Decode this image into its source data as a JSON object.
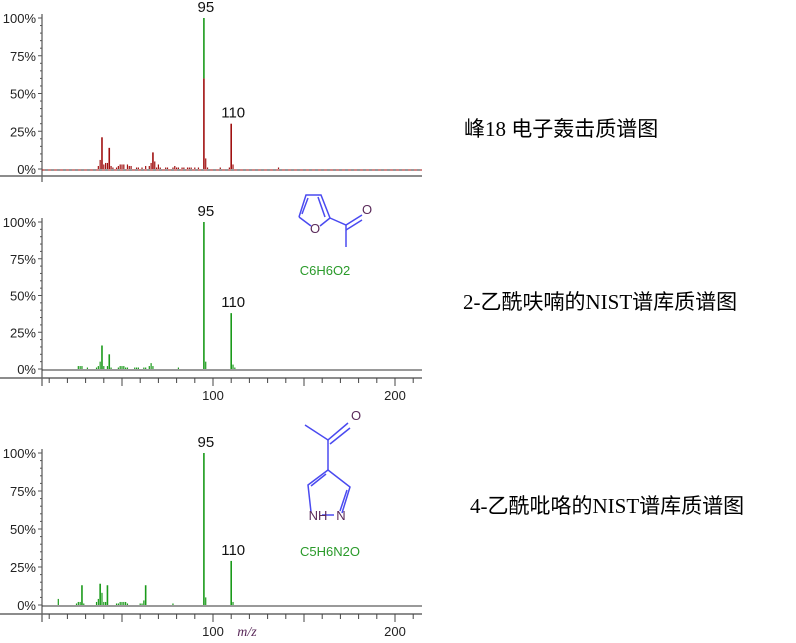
{
  "chart_data": [
    {
      "type": "bar",
      "caption": "峰18 电子轰击质谱图",
      "yticks": [
        "100%",
        "75%",
        "50%",
        "25%",
        "0%"
      ],
      "xticks": [],
      "ylim": [
        0,
        100
      ],
      "xlim": [
        6,
        209
      ],
      "color": "#a01010",
      "overlay_color": "#1a9a1a",
      "peak_labels": [
        {
          "x": 95,
          "text": "95"
        },
        {
          "x": 110,
          "text": "110"
        }
      ],
      "peaks": [
        [
          37,
          2
        ],
        [
          38,
          6
        ],
        [
          39,
          21
        ],
        [
          40,
          3
        ],
        [
          41,
          4
        ],
        [
          42,
          4
        ],
        [
          43,
          14
        ],
        [
          44,
          2
        ],
        [
          45,
          1
        ],
        [
          47,
          1
        ],
        [
          48,
          2
        ],
        [
          49,
          3
        ],
        [
          50,
          3
        ],
        [
          51,
          3
        ],
        [
          53,
          3
        ],
        [
          54,
          2
        ],
        [
          55,
          2
        ],
        [
          58,
          1
        ],
        [
          59,
          1
        ],
        [
          61,
          1
        ],
        [
          63,
          2
        ],
        [
          65,
          2
        ],
        [
          66,
          4
        ],
        [
          67,
          11
        ],
        [
          68,
          5
        ],
        [
          69,
          1
        ],
        [
          70,
          3
        ],
        [
          71,
          1
        ],
        [
          74,
          1
        ],
        [
          75,
          1
        ],
        [
          78,
          1
        ],
        [
          79,
          2
        ],
        [
          80,
          1
        ],
        [
          81,
          1
        ],
        [
          83,
          1
        ],
        [
          84,
          1
        ],
        [
          86,
          1
        ],
        [
          87,
          1
        ],
        [
          88,
          1
        ],
        [
          90,
          1
        ],
        [
          92,
          1
        ],
        [
          95,
          100
        ],
        [
          96,
          7
        ],
        [
          97,
          1
        ],
        [
          104,
          1
        ],
        [
          109,
          1
        ],
        [
          110,
          30
        ],
        [
          111,
          3
        ],
        [
          136,
          1
        ]
      ]
    },
    {
      "type": "bar",
      "caption": "2-乙酰呋喃的NIST谱库质谱图",
      "formula": "C6H6O2",
      "atoms": [
        "O",
        "O"
      ],
      "yticks": [
        "100%",
        "75%",
        "50%",
        "25%",
        "0%"
      ],
      "xticks": [
        "100",
        "200"
      ],
      "ylim": [
        0,
        100
      ],
      "xlim": [
        6,
        209
      ],
      "color": "#1a9a1a",
      "peak_labels": [
        {
          "x": 95,
          "text": "95"
        },
        {
          "x": 110,
          "text": "110"
        }
      ],
      "peaks": [
        [
          26,
          2
        ],
        [
          27,
          2
        ],
        [
          28,
          2
        ],
        [
          31,
          1
        ],
        [
          36,
          1
        ],
        [
          37,
          2
        ],
        [
          38,
          5
        ],
        [
          39,
          16
        ],
        [
          40,
          2
        ],
        [
          42,
          2
        ],
        [
          43,
          10
        ],
        [
          44,
          1
        ],
        [
          48,
          1
        ],
        [
          49,
          2
        ],
        [
          50,
          2
        ],
        [
          51,
          2
        ],
        [
          52,
          1
        ],
        [
          53,
          1
        ],
        [
          57,
          1
        ],
        [
          58,
          1
        ],
        [
          59,
          1
        ],
        [
          62,
          1
        ],
        [
          63,
          1
        ],
        [
          65,
          2
        ],
        [
          66,
          4
        ],
        [
          67,
          2
        ],
        [
          81,
          1
        ],
        [
          95,
          100
        ],
        [
          96,
          5
        ],
        [
          110,
          38
        ],
        [
          111,
          3
        ],
        [
          112,
          1
        ]
      ]
    },
    {
      "type": "bar",
      "caption": "4-乙酰吡咯的NIST谱库质谱图",
      "formula": "C5H6N2O",
      "atoms": [
        "O",
        "NH",
        "N"
      ],
      "xlabel": "m/z",
      "yticks": [
        "100%",
        "75%",
        "50%",
        "25%",
        "0%"
      ],
      "xticks": [
        "100",
        "200"
      ],
      "ylim": [
        0,
        100
      ],
      "xlim": [
        6,
        209
      ],
      "color": "#1a9a1a",
      "peak_labels": [
        {
          "x": 95,
          "text": "95"
        },
        {
          "x": 110,
          "text": "110"
        }
      ],
      "peaks": [
        [
          15,
          4
        ],
        [
          25,
          1
        ],
        [
          26,
          2
        ],
        [
          27,
          2
        ],
        [
          28,
          13
        ],
        [
          29,
          1
        ],
        [
          36,
          2
        ],
        [
          37,
          4
        ],
        [
          38,
          14
        ],
        [
          39,
          8
        ],
        [
          40,
          2
        ],
        [
          41,
          2
        ],
        [
          42,
          13
        ],
        [
          47,
          1
        ],
        [
          48,
          1
        ],
        [
          49,
          2
        ],
        [
          50,
          2
        ],
        [
          51,
          2
        ],
        [
          52,
          2
        ],
        [
          53,
          1
        ],
        [
          60,
          1
        ],
        [
          61,
          1
        ],
        [
          62,
          3
        ],
        [
          63,
          13
        ],
        [
          78,
          1
        ],
        [
          95,
          100
        ],
        [
          96,
          5
        ],
        [
          110,
          29
        ],
        [
          111,
          2
        ]
      ]
    }
  ]
}
